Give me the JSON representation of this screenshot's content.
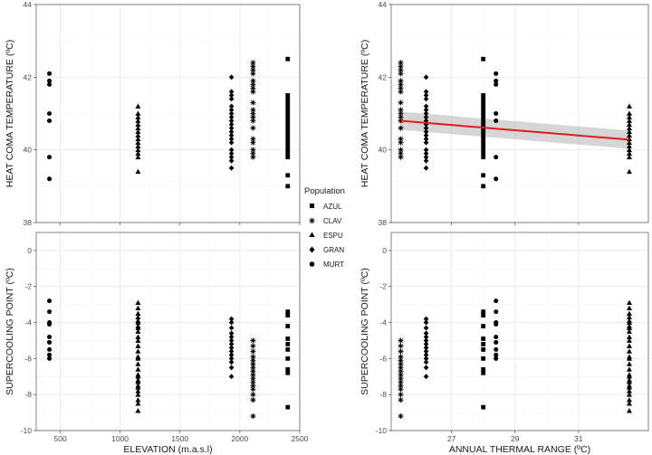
{
  "colors": {
    "trend_line": "#e31a1c",
    "confidence_band": "#999999",
    "points": "#000000",
    "grid": "#ebebeb"
  },
  "legend": {
    "title": "Population",
    "entries": [
      {
        "label": "AZUL",
        "shape": "square"
      },
      {
        "label": "CLAV",
        "shape": "star"
      },
      {
        "label": "ESPU",
        "shape": "triangle"
      },
      {
        "label": "GRAN",
        "shape": "diamond"
      },
      {
        "label": "MURT",
        "shape": "circle"
      }
    ]
  },
  "chart_data": [
    {
      "id": "hct_elev",
      "type": "scatter",
      "xlabel": "",
      "ylabel": "HEAT COMA TEMPERATURE (ºC)",
      "xlim": [
        300,
        2500
      ],
      "ylim": [
        38,
        44
      ],
      "xticks": [
        500,
        1000,
        1500,
        2000,
        2500
      ],
      "yticks": [
        38,
        40,
        42,
        44
      ],
      "show_xtick_labels": false,
      "series": [
        {
          "name": "MURT",
          "x": 410,
          "values": [
            42.1,
            41.9,
            41.8,
            41.0,
            40.8,
            39.8,
            39.2
          ]
        },
        {
          "name": "ESPU",
          "x": 1150,
          "values": [
            41.2,
            41.0,
            40.9,
            40.8,
            40.7,
            40.6,
            40.5,
            40.4,
            40.3,
            40.2,
            40.1,
            40.0,
            39.9,
            39.8,
            39.4
          ]
        },
        {
          "name": "GRAN",
          "x": 1930,
          "values": [
            42.0,
            41.6,
            41.5,
            41.4,
            41.2,
            41.1,
            41.0,
            40.9,
            40.8,
            40.7,
            40.6,
            40.5,
            40.4,
            40.3,
            40.2,
            40.0,
            39.9,
            39.8,
            39.7,
            39.5
          ]
        },
        {
          "name": "CLAV",
          "x": 2110,
          "values": [
            42.4,
            42.3,
            42.2,
            42.1,
            41.9,
            41.8,
            41.7,
            41.6,
            41.3,
            41.1,
            41.0,
            40.9,
            40.8,
            40.6,
            40.3,
            40.2,
            40.0,
            39.9,
            39.8
          ]
        },
        {
          "name": "AZUL",
          "x": 2400,
          "values": [
            42.5,
            41.5,
            41.4,
            41.3,
            41.2,
            41.1,
            41.0,
            40.9,
            40.8,
            40.7,
            40.6,
            40.5,
            40.4,
            40.3,
            40.2,
            40.1,
            40.0,
            39.9,
            39.8,
            39.3,
            39.0
          ]
        }
      ]
    },
    {
      "id": "hct_range",
      "type": "scatter",
      "xlabel": "",
      "ylabel": "HEAT COMA TEMPERATURE (ºC)",
      "xlim": [
        25.1,
        33.2
      ],
      "ylim": [
        38,
        44
      ],
      "xticks": [
        27,
        29,
        31
      ],
      "yticks": [
        38,
        40,
        42,
        44
      ],
      "show_xtick_labels": false,
      "series": [
        {
          "name": "CLAV",
          "x": 25.4,
          "values": [
            42.4,
            42.3,
            42.2,
            42.1,
            41.9,
            41.8,
            41.7,
            41.6,
            41.3,
            41.1,
            41.0,
            40.9,
            40.8,
            40.6,
            40.3,
            40.2,
            40.0,
            39.9,
            39.8
          ]
        },
        {
          "name": "GRAN",
          "x": 26.2,
          "values": [
            42.0,
            41.6,
            41.5,
            41.4,
            41.2,
            41.1,
            41.0,
            40.9,
            40.8,
            40.7,
            40.6,
            40.5,
            40.4,
            40.3,
            40.2,
            40.0,
            39.9,
            39.8,
            39.7,
            39.5
          ]
        },
        {
          "name": "AZUL",
          "x": 28.0,
          "values": [
            42.5,
            41.5,
            41.4,
            41.3,
            41.2,
            41.1,
            41.0,
            40.9,
            40.8,
            40.7,
            40.6,
            40.5,
            40.4,
            40.3,
            40.2,
            40.1,
            40.0,
            39.9,
            39.8,
            39.3,
            39.0
          ]
        },
        {
          "name": "MURT",
          "x": 28.4,
          "values": [
            42.1,
            41.9,
            41.8,
            41.0,
            40.8,
            39.8,
            39.2
          ]
        },
        {
          "name": "ESPU",
          "x": 32.6,
          "values": [
            41.2,
            41.0,
            40.9,
            40.8,
            40.7,
            40.6,
            40.5,
            40.4,
            40.3,
            40.2,
            40.1,
            40.0,
            39.9,
            39.8,
            39.4
          ]
        }
      ],
      "trend": {
        "x": [
          25.4,
          32.6
        ],
        "y": [
          40.8,
          40.28
        ],
        "band_lower": [
          40.55,
          40.03
        ],
        "band_upper": [
          41.05,
          40.53
        ]
      }
    },
    {
      "id": "scp_elev",
      "type": "scatter",
      "xlabel": "ELEVATION (m.a.s.l)",
      "ylabel": "SUPERCOOLING POINT (ºC)",
      "xlim": [
        300,
        2500
      ],
      "ylim": [
        -10,
        1
      ],
      "xticks": [
        500,
        1000,
        1500,
        2000,
        2500
      ],
      "yticks": [
        -10,
        -8,
        -6,
        -4,
        -2,
        0
      ],
      "show_xtick_labels": true,
      "series": [
        {
          "name": "MURT",
          "x": 410,
          "values": [
            -2.8,
            -3.4,
            -4.0,
            -4.1,
            -4.8,
            -5.1,
            -5.5,
            -5.8,
            -6.0
          ]
        },
        {
          "name": "ESPU",
          "x": 1150,
          "values": [
            -2.9,
            -3.2,
            -3.5,
            -3.7,
            -3.9,
            -4.0,
            -4.2,
            -4.3,
            -4.5,
            -4.8,
            -5.0,
            -5.3,
            -5.6,
            -5.9,
            -6.0,
            -6.3,
            -6.6,
            -6.9,
            -7.0,
            -7.2,
            -7.3,
            -7.5,
            -7.6,
            -7.8,
            -8.0,
            -8.3,
            -8.5,
            -8.9
          ]
        },
        {
          "name": "GRAN",
          "x": 1930,
          "values": [
            -3.8,
            -4.0,
            -4.3,
            -4.6,
            -4.8,
            -5.0,
            -5.2,
            -5.4,
            -5.6,
            -5.8,
            -6.0,
            -6.2,
            -6.5,
            -7.0
          ]
        },
        {
          "name": "CLAV",
          "x": 2110,
          "values": [
            -5.0,
            -5.3,
            -5.6,
            -5.9,
            -6.1,
            -6.3,
            -6.5,
            -6.7,
            -6.9,
            -7.1,
            -7.3,
            -7.5,
            -7.7,
            -8.0,
            -8.3,
            -9.2
          ]
        },
        {
          "name": "AZUL",
          "x": 2400,
          "values": [
            -3.4,
            -3.6,
            -4.2,
            -4.9,
            -5.2,
            -5.5,
            -6.0,
            -6.6,
            -6.8,
            -8.7
          ]
        }
      ]
    },
    {
      "id": "scp_range",
      "type": "scatter",
      "xlabel": "ANNUAL THERMAL RANGE (ºC)",
      "ylabel": "SUPERCOOLING POINT (ºC)",
      "xlim": [
        25.1,
        33.2
      ],
      "ylim": [
        -10,
        1
      ],
      "xticks": [
        27,
        29,
        31
      ],
      "yticks": [
        -10,
        -8,
        -6,
        -4,
        -2,
        0
      ],
      "show_xtick_labels": true,
      "series": [
        {
          "name": "CLAV",
          "x": 25.4,
          "values": [
            -5.0,
            -5.3,
            -5.6,
            -5.9,
            -6.1,
            -6.3,
            -6.5,
            -6.7,
            -6.9,
            -7.1,
            -7.3,
            -7.5,
            -7.7,
            -8.0,
            -8.3,
            -9.2
          ]
        },
        {
          "name": "GRAN",
          "x": 26.2,
          "values": [
            -3.8,
            -4.0,
            -4.3,
            -4.6,
            -4.8,
            -5.0,
            -5.2,
            -5.4,
            -5.6,
            -5.8,
            -6.0,
            -6.2,
            -6.5,
            -7.0
          ]
        },
        {
          "name": "AZUL",
          "x": 28.0,
          "values": [
            -3.4,
            -3.6,
            -4.2,
            -4.9,
            -5.2,
            -5.5,
            -6.0,
            -6.6,
            -6.8,
            -8.7
          ]
        },
        {
          "name": "MURT",
          "x": 28.4,
          "values": [
            -2.8,
            -3.4,
            -4.0,
            -4.1,
            -4.8,
            -5.1,
            -5.5,
            -5.8,
            -6.0
          ]
        },
        {
          "name": "ESPU",
          "x": 32.6,
          "values": [
            -2.9,
            -3.2,
            -3.5,
            -3.7,
            -3.9,
            -4.0,
            -4.2,
            -4.3,
            -4.5,
            -4.8,
            -5.0,
            -5.3,
            -5.6,
            -5.9,
            -6.0,
            -6.3,
            -6.6,
            -6.9,
            -7.0,
            -7.2,
            -7.3,
            -7.5,
            -7.6,
            -7.8,
            -8.0,
            -8.3,
            -8.5,
            -8.9
          ]
        }
      ]
    }
  ]
}
